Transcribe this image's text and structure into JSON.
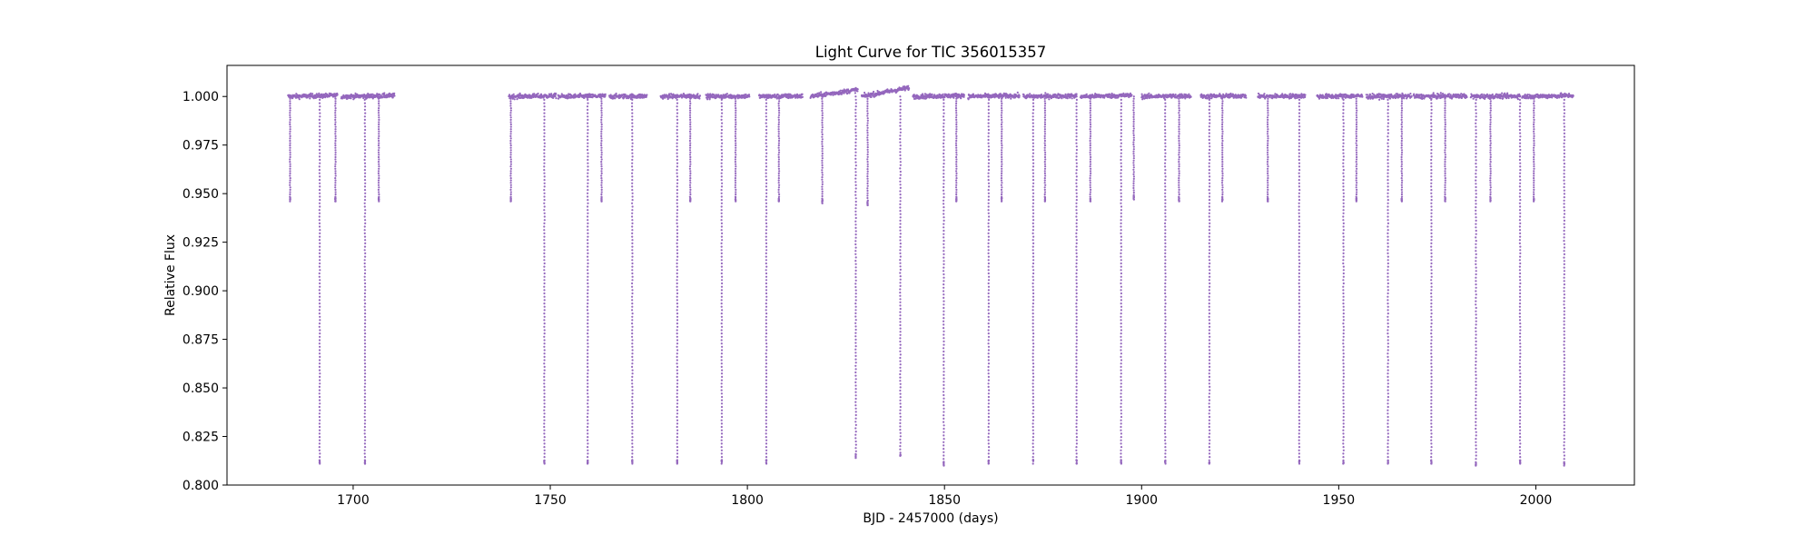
{
  "chart_data": {
    "type": "scatter",
    "title": "Light Curve for TIC 356015357",
    "xlabel": "BJD - 2457000 (days)",
    "ylabel": "Relative Flux",
    "xlim": [
      1668,
      2025
    ],
    "ylim": [
      0.8,
      1.016
    ],
    "xticks": [
      1700,
      1750,
      1800,
      1850,
      1900,
      1950,
      2000
    ],
    "yticks": [
      0.8,
      0.825,
      0.85,
      0.875,
      0.9,
      0.925,
      0.95,
      0.975,
      1.0
    ],
    "ytick_labels": [
      "0.800",
      "0.825",
      "0.850",
      "0.875",
      "0.900",
      "0.925",
      "0.950",
      "0.975",
      "1.000"
    ],
    "grid": false,
    "point_color": "#9467bd",
    "baseline_flux": 1.0,
    "segments": [
      {
        "start": 1683.5,
        "end": 1696.0,
        "slope": 0.0005
      },
      {
        "start": 1697.0,
        "end": 1710.5,
        "slope": 0.0004
      },
      {
        "start": 1739.5,
        "end": 1751.5,
        "slope": 0.0003
      },
      {
        "start": 1752.0,
        "end": 1764.0,
        "slope": 0.0002
      },
      {
        "start": 1765.0,
        "end": 1774.5,
        "slope": 0.0002
      },
      {
        "start": 1778.0,
        "end": 1788.0,
        "slope": 0.0003
      },
      {
        "start": 1789.5,
        "end": 1800.5,
        "slope": 0.0002
      },
      {
        "start": 1803.0,
        "end": 1814.0,
        "slope": 0.0002
      },
      {
        "start": 1816.0,
        "end": 1828.0,
        "slope": 0.0035
      },
      {
        "start": 1829.0,
        "end": 1841.0,
        "slope": 0.0045
      },
      {
        "start": 1842.0,
        "end": 1855.0,
        "slope": 0.0005
      },
      {
        "start": 1856.0,
        "end": 1869.0,
        "slope": 0.0004
      },
      {
        "start": 1870.0,
        "end": 1883.5,
        "slope": 0.0003
      },
      {
        "start": 1884.5,
        "end": 1897.5,
        "slope": 0.0006
      },
      {
        "start": 1900.0,
        "end": 1912.5,
        "slope": 0.0003
      },
      {
        "start": 1915.0,
        "end": 1926.5,
        "slope": 0.0004
      },
      {
        "start": 1929.5,
        "end": 1941.5,
        "slope": 0.0003
      },
      {
        "start": 1944.5,
        "end": 1956.0,
        "slope": 0.0003
      },
      {
        "start": 1957.0,
        "end": 1968.5,
        "slope": 0.0002
      },
      {
        "start": 1969.0,
        "end": 1982.5,
        "slope": 0.0003
      },
      {
        "start": 1983.5,
        "end": 1996.0,
        "slope": 0.0002
      },
      {
        "start": 1996.5,
        "end": 2009.5,
        "slope": 0.0005
      }
    ],
    "primary_eclipses": [
      {
        "t": 1691.5,
        "depth": 0.811
      },
      {
        "t": 1703.0,
        "depth": 0.811
      },
      {
        "t": 1748.5,
        "depth": 0.811
      },
      {
        "t": 1759.5,
        "depth": 0.811
      },
      {
        "t": 1770.8,
        "depth": 0.811
      },
      {
        "t": 1782.2,
        "depth": 0.811
      },
      {
        "t": 1793.5,
        "depth": 0.811
      },
      {
        "t": 1804.8,
        "depth": 0.811
      },
      {
        "t": 1827.5,
        "depth": 0.814
      },
      {
        "t": 1838.8,
        "depth": 0.815
      },
      {
        "t": 1849.8,
        "depth": 0.81
      },
      {
        "t": 1861.2,
        "depth": 0.811
      },
      {
        "t": 1872.5,
        "depth": 0.811
      },
      {
        "t": 1883.5,
        "depth": 0.811
      },
      {
        "t": 1894.8,
        "depth": 0.811
      },
      {
        "t": 1906.0,
        "depth": 0.811
      },
      {
        "t": 1917.2,
        "depth": 0.811
      },
      {
        "t": 1940.0,
        "depth": 0.811
      },
      {
        "t": 1951.2,
        "depth": 0.811
      },
      {
        "t": 1962.5,
        "depth": 0.811
      },
      {
        "t": 1973.5,
        "depth": 0.811
      },
      {
        "t": 1984.8,
        "depth": 0.81
      },
      {
        "t": 1996.0,
        "depth": 0.811
      },
      {
        "t": 2007.2,
        "depth": 0.81
      }
    ],
    "secondary_eclipses": [
      {
        "t": 1684.0,
        "depth": 0.946
      },
      {
        "t": 1695.5,
        "depth": 0.946
      },
      {
        "t": 1706.5,
        "depth": 0.946
      },
      {
        "t": 1740.0,
        "depth": 0.946
      },
      {
        "t": 1763.0,
        "depth": 0.946
      },
      {
        "t": 1785.5,
        "depth": 0.946
      },
      {
        "t": 1797.0,
        "depth": 0.946
      },
      {
        "t": 1808.0,
        "depth": 0.946
      },
      {
        "t": 1819.0,
        "depth": 0.945
      },
      {
        "t": 1830.5,
        "depth": 0.944
      },
      {
        "t": 1853.0,
        "depth": 0.946
      },
      {
        "t": 1864.5,
        "depth": 0.946
      },
      {
        "t": 1875.5,
        "depth": 0.946
      },
      {
        "t": 1887.0,
        "depth": 0.946
      },
      {
        "t": 1898.0,
        "depth": 0.947
      },
      {
        "t": 1909.5,
        "depth": 0.946
      },
      {
        "t": 1920.5,
        "depth": 0.946
      },
      {
        "t": 1932.0,
        "depth": 0.946
      },
      {
        "t": 1954.5,
        "depth": 0.946
      },
      {
        "t": 1966.0,
        "depth": 0.946
      },
      {
        "t": 1977.0,
        "depth": 0.946
      },
      {
        "t": 1988.5,
        "depth": 0.946
      },
      {
        "t": 1999.5,
        "depth": 0.946
      }
    ]
  }
}
